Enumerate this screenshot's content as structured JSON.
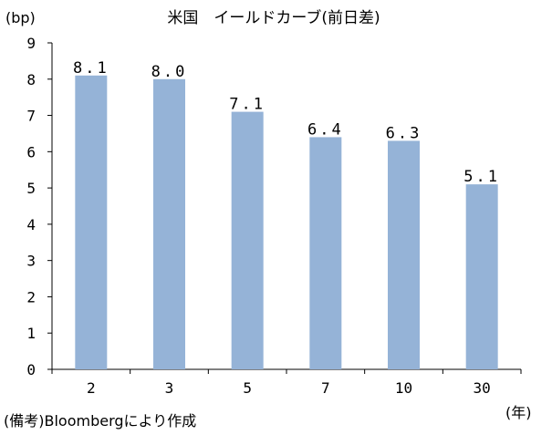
{
  "chart_data": {
    "type": "bar",
    "title": "米国　イールドカーブ(前日差)",
    "ylabel": "(bp)",
    "xlabel": "(年)",
    "source_note": "(備考)Bloombergにより作成",
    "categories": [
      "2",
      "3",
      "5",
      "7",
      "10",
      "30"
    ],
    "values": [
      8.1,
      8.0,
      7.1,
      6.4,
      6.3,
      5.1
    ],
    "data_labels": [
      "8.1",
      "8.0",
      "7.1",
      "6.4",
      "6.3",
      "5.1"
    ],
    "ylim": [
      0,
      9
    ],
    "yticks": [
      "0",
      "1",
      "2",
      "3",
      "4",
      "5",
      "6",
      "7",
      "8",
      "9"
    ],
    "grid": false,
    "legend": "none",
    "bar_color": "#95b3d7"
  }
}
